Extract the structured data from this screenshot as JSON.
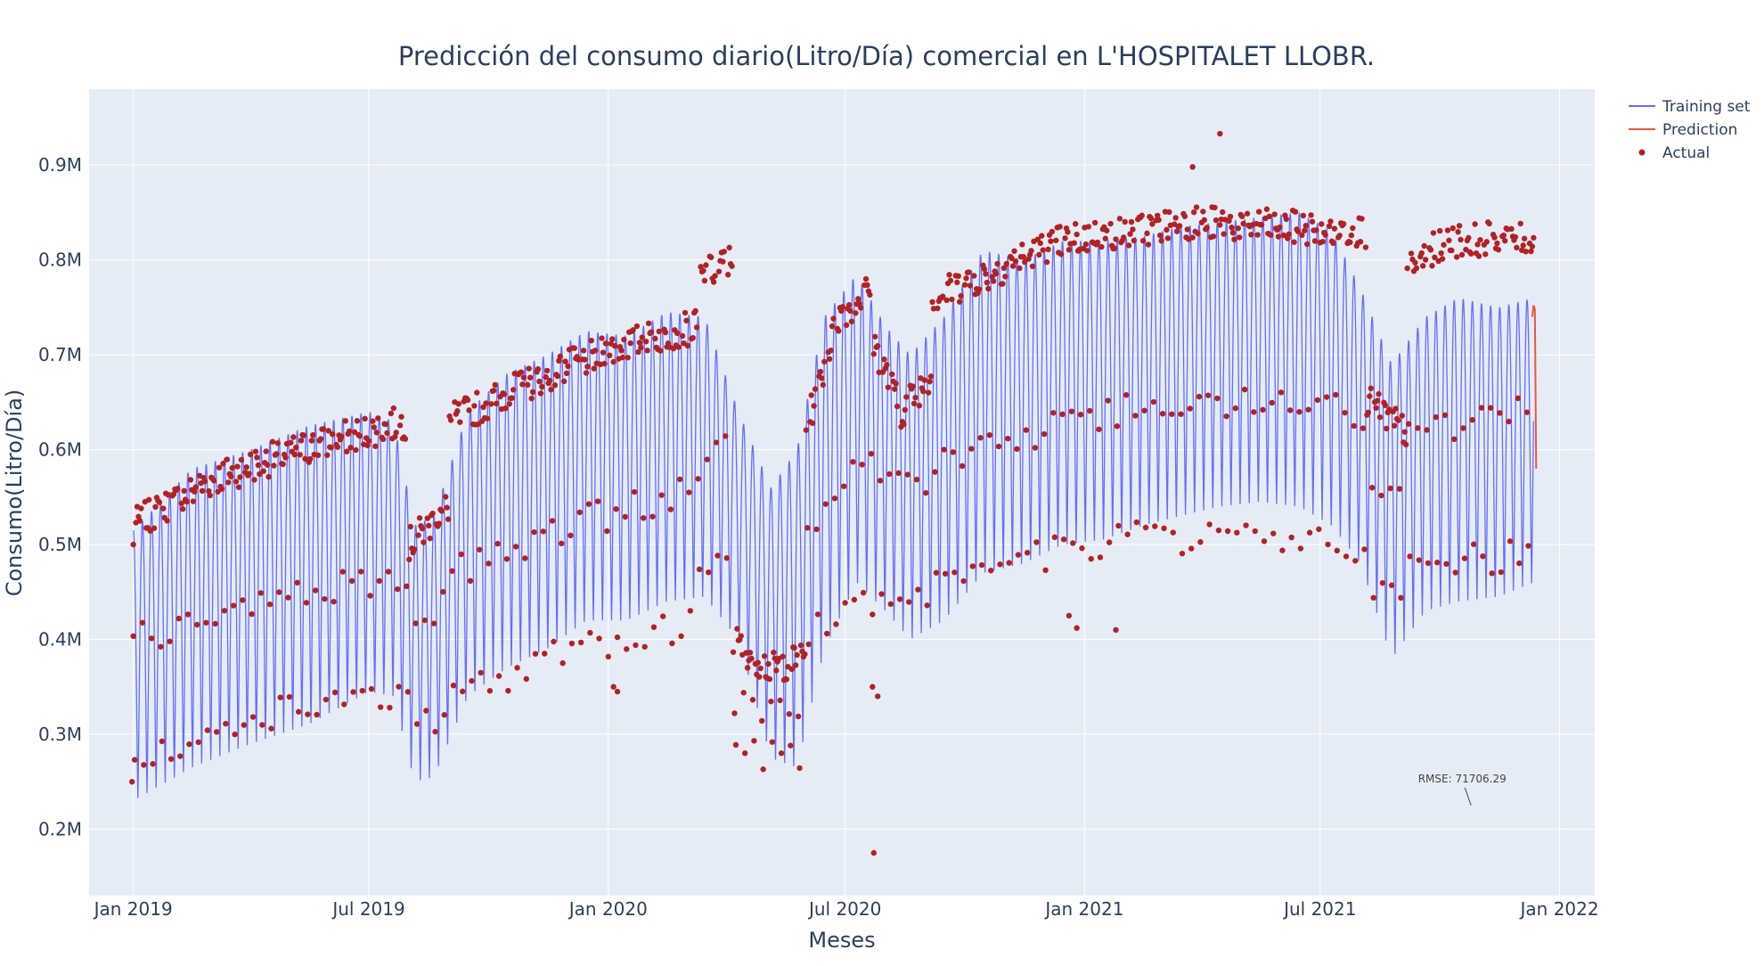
{
  "chart_data": {
    "type": "line",
    "title": "Predicción del consumo diario(Litro/Día) comercial en L'HOSPITALET LLOBR.",
    "xlabel": "Meses",
    "ylabel": "Consumo(Litro/Día)",
    "x_range": [
      "2018-11-28",
      "2022-01-28"
    ],
    "ylim": [
      130000,
      980000
    ],
    "x_ticks": [
      {
        "date": "2019-01-01",
        "label": "Jan 2019"
      },
      {
        "date": "2019-07-01",
        "label": "Jul 2019"
      },
      {
        "date": "2020-01-01",
        "label": "Jan 2020"
      },
      {
        "date": "2020-07-01",
        "label": "Jul 2020"
      },
      {
        "date": "2021-01-01",
        "label": "Jan 2021"
      },
      {
        "date": "2021-07-01",
        "label": "Jul 2021"
      },
      {
        "date": "2022-01-01",
        "label": "Jan 2022"
      }
    ],
    "y_ticks": [
      {
        "value": 200000,
        "label": "0.2M"
      },
      {
        "value": 300000,
        "label": "0.3M"
      },
      {
        "value": 400000,
        "label": "0.4M"
      },
      {
        "value": 500000,
        "label": "0.5M"
      },
      {
        "value": 600000,
        "label": "0.6M"
      },
      {
        "value": 700000,
        "label": "0.7M"
      },
      {
        "value": 800000,
        "label": "0.8M"
      },
      {
        "value": 900000,
        "label": "0.9M"
      }
    ],
    "grid": true,
    "legend_position": "top-right",
    "series": [
      {
        "name": "Training set",
        "kind": "line",
        "color": "#636efa",
        "period_days": 7,
        "x_start": "2019-01-01",
        "x_end": "2021-12-12",
        "peak_envelope": [
          [
            "2019-01-01",
            515000
          ],
          [
            "2019-02-15",
            580000
          ],
          [
            "2019-04-01",
            600000
          ],
          [
            "2019-05-15",
            625000
          ],
          [
            "2019-07-01",
            640000
          ],
          [
            "2019-07-20",
            630000
          ],
          [
            "2019-08-05",
            520000
          ],
          [
            "2019-08-20",
            530000
          ],
          [
            "2019-09-15",
            640000
          ],
          [
            "2019-10-15",
            680000
          ],
          [
            "2019-11-15",
            700000
          ],
          [
            "2019-12-15",
            725000
          ],
          [
            "2020-01-15",
            720000
          ],
          [
            "2020-02-15",
            745000
          ],
          [
            "2020-03-15",
            740000
          ],
          [
            "2020-04-10",
            640000
          ],
          [
            "2020-05-05",
            560000
          ],
          [
            "2020-05-25",
            600000
          ],
          [
            "2020-06-15",
            740000
          ],
          [
            "2020-07-10",
            785000
          ],
          [
            "2020-08-01",
            730000
          ],
          [
            "2020-08-20",
            700000
          ],
          [
            "2020-09-15",
            740000
          ],
          [
            "2020-10-15",
            810000
          ],
          [
            "2020-11-15",
            800000
          ],
          [
            "2020-12-15",
            820000
          ],
          [
            "2021-01-15",
            820000
          ],
          [
            "2021-02-15",
            825000
          ],
          [
            "2021-03-15",
            835000
          ],
          [
            "2021-04-15",
            840000
          ],
          [
            "2021-05-15",
            845000
          ],
          [
            "2021-06-15",
            850000
          ],
          [
            "2021-07-10",
            830000
          ],
          [
            "2021-08-01",
            770000
          ],
          [
            "2021-08-25",
            690000
          ],
          [
            "2021-09-20",
            740000
          ],
          [
            "2021-10-15",
            760000
          ],
          [
            "2021-11-15",
            750000
          ],
          [
            "2021-12-12",
            760000
          ]
        ],
        "trough_envelope": [
          [
            "2019-01-01",
            230000
          ],
          [
            "2019-02-15",
            265000
          ],
          [
            "2019-04-01",
            290000
          ],
          [
            "2019-05-15",
            310000
          ],
          [
            "2019-07-01",
            345000
          ],
          [
            "2019-07-20",
            340000
          ],
          [
            "2019-08-05",
            250000
          ],
          [
            "2019-08-20",
            255000
          ],
          [
            "2019-09-15",
            340000
          ],
          [
            "2019-10-15",
            370000
          ],
          [
            "2019-11-15",
            390000
          ],
          [
            "2019-12-15",
            420000
          ],
          [
            "2020-01-15",
            420000
          ],
          [
            "2020-02-15",
            440000
          ],
          [
            "2020-03-15",
            445000
          ],
          [
            "2020-04-10",
            400000
          ],
          [
            "2020-05-05",
            275000
          ],
          [
            "2020-05-25",
            265000
          ],
          [
            "2020-06-15",
            390000
          ],
          [
            "2020-07-10",
            460000
          ],
          [
            "2020-08-01",
            430000
          ],
          [
            "2020-08-20",
            400000
          ],
          [
            "2020-09-15",
            420000
          ],
          [
            "2020-10-15",
            470000
          ],
          [
            "2020-11-15",
            480000
          ],
          [
            "2020-12-15",
            500000
          ],
          [
            "2021-01-15",
            505000
          ],
          [
            "2021-02-15",
            520000
          ],
          [
            "2021-03-15",
            530000
          ],
          [
            "2021-04-15",
            540000
          ],
          [
            "2021-05-15",
            545000
          ],
          [
            "2021-06-15",
            540000
          ],
          [
            "2021-07-10",
            520000
          ],
          [
            "2021-08-01",
            480000
          ],
          [
            "2021-08-25",
            380000
          ],
          [
            "2021-09-20",
            430000
          ],
          [
            "2021-10-15",
            440000
          ],
          [
            "2021-11-15",
            445000
          ],
          [
            "2021-12-12",
            460000
          ]
        ]
      },
      {
        "name": "Prediction",
        "kind": "line",
        "color": "#ef553b",
        "points": [
          [
            "2021-12-11",
            740000
          ],
          [
            "2021-12-12",
            752000
          ],
          [
            "2021-12-13",
            748000
          ],
          [
            "2021-12-14",
            580000
          ]
        ]
      },
      {
        "name": "Actual",
        "kind": "markers",
        "color": "#b22222",
        "segments": [
          {
            "start": "2019-01-01",
            "end": "2019-07-31",
            "high": [
              [
                0,
                520000
              ],
              [
                0.3,
                570000
              ],
              [
                0.6,
                600000
              ],
              [
                1,
                630000
              ]
            ],
            "mid": [
              [
                0,
                400000
              ],
              [
                0.5,
                440000
              ],
              [
                1,
                470000
              ]
            ],
            "low": [
              [
                0,
                280000
              ],
              [
                0.5,
                320000
              ],
              [
                1,
                345000
              ]
            ]
          },
          {
            "start": "2019-08-01",
            "end": "2019-08-31",
            "high": [
              [
                0,
                500000
              ],
              [
                1,
                540000
              ]
            ],
            "mid": [
              [
                0,
                420000
              ],
              [
                1,
                440000
              ]
            ],
            "low": [
              [
                0,
                310000
              ],
              [
                1,
                320000
              ]
            ]
          },
          {
            "start": "2019-09-01",
            "end": "2020-03-10",
            "high": [
              [
                0,
                630000
              ],
              [
                0.4,
                680000
              ],
              [
                0.7,
                710000
              ],
              [
                1,
                730000
              ]
            ],
            "mid": [
              [
                0,
                470000
              ],
              [
                0.5,
                520000
              ],
              [
                1,
                560000
              ]
            ],
            "low": [
              [
                0,
                340000
              ],
              [
                0.5,
                390000
              ],
              [
                1,
                420000
              ]
            ]
          },
          {
            "start": "2020-03-11",
            "end": "2020-04-05",
            "high": [
              [
                0,
                780000
              ],
              [
                1,
                800000
              ]
            ],
            "mid": [
              [
                0,
                600000
              ],
              [
                1,
                610000
              ]
            ],
            "low": [
              [
                0,
                470000
              ],
              [
                1,
                490000
              ]
            ]
          },
          {
            "start": "2020-04-06",
            "end": "2020-05-31",
            "high": [
              [
                0,
                400000
              ],
              [
                0.5,
                370000
              ],
              [
                1,
                380000
              ]
            ],
            "mid": [
              [
                0,
                330000
              ],
              [
                1,
                330000
              ]
            ],
            "low": [
              [
                0,
                280000
              ],
              [
                1,
                270000
              ]
            ]
          },
          {
            "start": "2020-06-01",
            "end": "2020-07-20",
            "high": [
              [
                0,
                620000
              ],
              [
                0.5,
                740000
              ],
              [
                1,
                770000
              ]
            ],
            "mid": [
              [
                0,
                520000
              ],
              [
                1,
                600000
              ]
            ],
            "low": [
              [
                0,
                400000
              ],
              [
                1,
                460000
              ]
            ]
          },
          {
            "start": "2020-07-21",
            "end": "2020-09-05",
            "high": [
              [
                0,
                720000
              ],
              [
                0.5,
                640000
              ],
              [
                1,
                680000
              ]
            ],
            "mid": [
              [
                0,
                580000
              ],
              [
                1,
                560000
              ]
            ],
            "low": [
              [
                0,
                440000
              ],
              [
                1,
                450000
              ]
            ]
          },
          {
            "start": "2020-09-06",
            "end": "2021-08-05",
            "high": [
              [
                0,
                760000
              ],
              [
                0.3,
                820000
              ],
              [
                0.6,
                840000
              ],
              [
                1,
                830000
              ]
            ],
            "mid": [
              [
                0,
                590000
              ],
              [
                0.5,
                650000
              ],
              [
                1,
                640000
              ]
            ],
            "low": [
              [
                0,
                470000
              ],
              [
                0.5,
                510000
              ],
              [
                1,
                500000
              ]
            ]
          },
          {
            "start": "2021-08-06",
            "end": "2021-09-05",
            "high": [
              [
                0,
                650000
              ],
              [
                1,
                620000
              ]
            ],
            "mid": [
              [
                0,
                560000
              ],
              [
                1,
                540000
              ]
            ],
            "low": [
              [
                0,
                460000
              ],
              [
                1,
                440000
              ]
            ]
          },
          {
            "start": "2021-09-06",
            "end": "2021-12-12",
            "high": [
              [
                0,
                790000
              ],
              [
                0.3,
                820000
              ],
              [
                1,
                825000
              ]
            ],
            "mid": [
              [
                0,
                610000
              ],
              [
                1,
                640000
              ]
            ],
            "low": [
              [
                0,
                480000
              ],
              [
                1,
                490000
              ]
            ]
          }
        ],
        "outliers": [
          [
            "2018-12-31",
            250000
          ],
          [
            "2019-01-01",
            500000
          ],
          [
            "2020-01-05",
            350000
          ],
          [
            "2020-01-08",
            345000
          ],
          [
            "2020-12-20",
            425000
          ],
          [
            "2020-12-26",
            412000
          ],
          [
            "2020-07-23",
            175000
          ],
          [
            "2020-07-22",
            350000
          ],
          [
            "2020-07-26",
            340000
          ],
          [
            "2021-04-15",
            933000
          ],
          [
            "2021-03-25",
            898000
          ],
          [
            "2021-01-25",
            410000
          ]
        ]
      }
    ],
    "annotations": [
      {
        "text": "RMSE: 71706.29",
        "date": "2021-10-25",
        "value": 225000
      }
    ]
  }
}
